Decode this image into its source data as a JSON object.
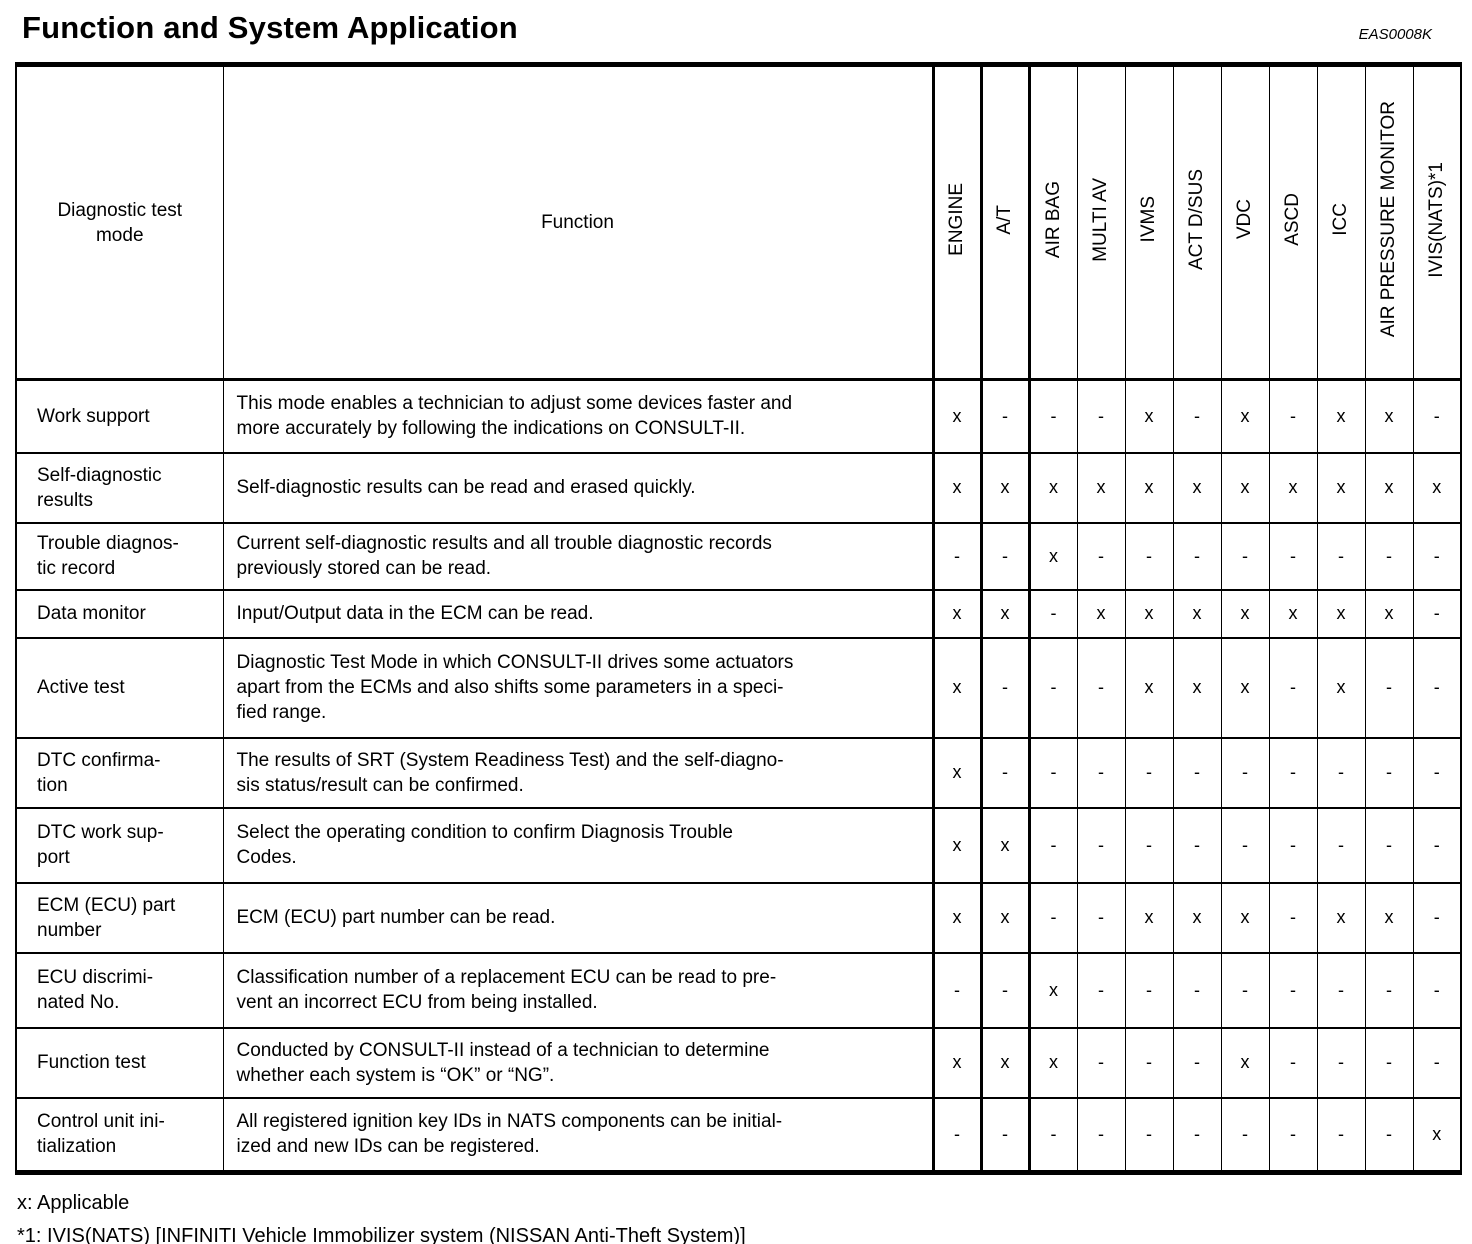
{
  "page": {
    "title": "Function and System Application",
    "doc_code": "EAS0008K"
  },
  "table": {
    "col1_header": "Diagnostic test mode",
    "col2_header": "Function",
    "system_columns": [
      "ENGINE",
      "A/T",
      "AIR BAG",
      "MULTI AV",
      "IVMS",
      "ACT D/SUS",
      "VDC",
      "ASCD",
      "ICC",
      "AIR PRESSURE MONITOR",
      "IVIS(NATS)*1"
    ],
    "rows": [
      {
        "mode_lines": [
          "Work support"
        ],
        "function_lines": [
          "This mode enables a technician to adjust some devices faster and",
          "more accurately by following the indications on CONSULT-II."
        ],
        "marks": [
          "x",
          "-",
          "-",
          "-",
          "x",
          "-",
          "x",
          "-",
          "x",
          "x",
          "-"
        ]
      },
      {
        "mode_lines": [
          "Self-diagnostic",
          "results"
        ],
        "function_lines": [
          "Self-diagnostic results can be read and erased quickly."
        ],
        "marks": [
          "x",
          "x",
          "x",
          "x",
          "x",
          "x",
          "x",
          "x",
          "x",
          "x",
          "x"
        ]
      },
      {
        "mode_lines": [
          "Trouble diagnos-",
          "tic record"
        ],
        "function_lines": [
          "Current self-diagnostic results and all trouble diagnostic records",
          "previously stored can be read."
        ],
        "marks": [
          "-",
          "-",
          "x",
          "-",
          "-",
          "-",
          "-",
          "-",
          "-",
          "-",
          "-"
        ]
      },
      {
        "mode_lines": [
          "Data monitor"
        ],
        "function_lines": [
          "Input/Output data in the ECM can be read."
        ],
        "marks": [
          "x",
          "x",
          "-",
          "x",
          "x",
          "x",
          "x",
          "x",
          "x",
          "x",
          "-"
        ]
      },
      {
        "mode_lines": [
          "Active test"
        ],
        "function_lines": [
          "Diagnostic Test Mode in which CONSULT-II drives some actuators",
          "apart from the ECMs and also shifts some parameters in a speci-",
          "fied range."
        ],
        "marks": [
          "x",
          "-",
          "-",
          "-",
          "x",
          "x",
          "x",
          "-",
          "x",
          "-",
          "-"
        ]
      },
      {
        "mode_lines": [
          "DTC confirma-",
          "tion"
        ],
        "function_lines": [
          "The results of SRT (System Readiness Test) and the self-diagno-",
          "sis status/result can be confirmed."
        ],
        "marks": [
          "x",
          "-",
          "-",
          "-",
          "-",
          "-",
          "-",
          "-",
          "-",
          "-",
          "-"
        ]
      },
      {
        "mode_lines": [
          "DTC work sup-",
          "port"
        ],
        "function_lines": [
          "Select the operating condition to confirm Diagnosis Trouble",
          "Codes."
        ],
        "marks": [
          "x",
          "x",
          "-",
          "-",
          "-",
          "-",
          "-",
          "-",
          "-",
          "-",
          "-"
        ]
      },
      {
        "mode_lines": [
          "ECM (ECU) part",
          "number"
        ],
        "function_lines": [
          "ECM (ECU) part number can be read."
        ],
        "marks": [
          "x",
          "x",
          "-",
          "-",
          "x",
          "x",
          "x",
          "-",
          "x",
          "x",
          "-"
        ]
      },
      {
        "mode_lines": [
          "ECU discrimi-",
          "nated No."
        ],
        "function_lines": [
          "Classification number of a replacement ECU can be read to pre-",
          "vent an incorrect ECU from being installed."
        ],
        "marks": [
          "-",
          "-",
          "x",
          "-",
          "-",
          "-",
          "-",
          "-",
          "-",
          "-",
          "-"
        ]
      },
      {
        "mode_lines": [
          "Function test"
        ],
        "function_lines": [
          "Conducted by CONSULT-II instead of a technician to determine",
          "whether each system is “OK” or “NG”."
        ],
        "marks": [
          "x",
          "x",
          "x",
          "-",
          "-",
          "-",
          "x",
          "-",
          "-",
          "-",
          "-"
        ]
      },
      {
        "mode_lines": [
          "Control unit ini-",
          "tialization"
        ],
        "function_lines": [
          "All registered ignition key IDs in NATS components can be initial-",
          "ized and new IDs can be registered."
        ],
        "marks": [
          "-",
          "-",
          "-",
          "-",
          "-",
          "-",
          "-",
          "-",
          "-",
          "-",
          "x"
        ]
      }
    ]
  },
  "footnotes": [
    "x: Applicable",
    "*1: IVIS(NATS) [INFINITI Vehicle Immobilizer system (NISSAN Anti-Theft System)]"
  ]
}
